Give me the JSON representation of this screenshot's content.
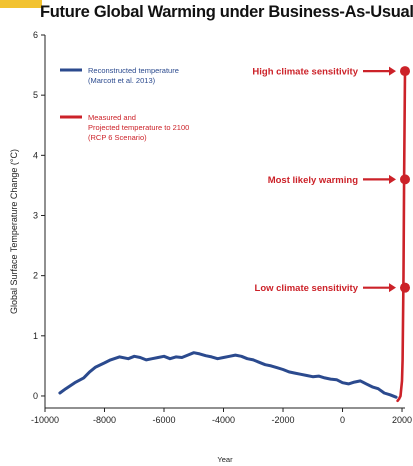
{
  "chart_data": {
    "type": "line",
    "title": "Future Global Warming under Business-As-Usual",
    "xlabel": "Year",
    "ylabel": "Global Surface Temperature Change (°C)",
    "xlim": [
      -10000,
      2100
    ],
    "ylim": [
      -0.2,
      6
    ],
    "x_ticks": [
      -10000,
      -8000,
      -6000,
      -4000,
      -2000,
      0,
      2000
    ],
    "y_ticks": [
      0,
      1,
      2,
      3,
      4,
      5,
      6
    ],
    "x_tick_labels": [
      "-10000",
      "-8000",
      "-6000",
      "-4000",
      "-2000",
      "0",
      "2000"
    ],
    "y_tick_labels": [
      "0",
      "1",
      "2",
      "3",
      "4",
      "5",
      "6"
    ],
    "legend_position": "top-left",
    "grid": false,
    "series": [
      {
        "name": "Reconstructed temperature (Marcott et al. 2013)",
        "legend_lines": [
          "Reconstructed temperature",
          "(Marcott et al. 2013)"
        ],
        "color": "#2b4a8e",
        "x": [
          -9500,
          -9300,
          -9000,
          -8700,
          -8500,
          -8300,
          -8000,
          -7800,
          -7500,
          -7200,
          -7000,
          -6800,
          -6600,
          -6400,
          -6200,
          -6000,
          -5800,
          -5600,
          -5400,
          -5200,
          -5000,
          -4800,
          -4600,
          -4400,
          -4200,
          -4000,
          -3800,
          -3600,
          -3400,
          -3200,
          -3000,
          -2800,
          -2600,
          -2400,
          -2200,
          -2000,
          -1800,
          -1600,
          -1400,
          -1200,
          -1000,
          -800,
          -600,
          -400,
          -200,
          0,
          200,
          400,
          600,
          800,
          1000,
          1200,
          1400,
          1600,
          1800
        ],
        "values": [
          0.05,
          0.12,
          0.22,
          0.3,
          0.4,
          0.48,
          0.55,
          0.6,
          0.65,
          0.62,
          0.66,
          0.64,
          0.6,
          0.62,
          0.64,
          0.66,
          0.62,
          0.65,
          0.64,
          0.68,
          0.72,
          0.7,
          0.67,
          0.65,
          0.62,
          0.64,
          0.66,
          0.68,
          0.66,
          0.62,
          0.6,
          0.56,
          0.52,
          0.5,
          0.47,
          0.44,
          0.4,
          0.38,
          0.36,
          0.34,
          0.32,
          0.33,
          0.3,
          0.28,
          0.27,
          0.22,
          0.2,
          0.23,
          0.25,
          0.2,
          0.15,
          0.12,
          0.05,
          0.02,
          -0.02
        ]
      },
      {
        "name": "Measured and Projected temperature to 2100 (RCP 6 Scenario)",
        "legend_lines": [
          "Measured and",
          "Projected temperature to 2100",
          "(RCP 6 Scenario)"
        ],
        "color": "#cc2229",
        "x": [
          1850,
          1900,
          1950,
          2000,
          2020,
          2050,
          2070,
          2100
        ],
        "values": [
          -0.08,
          -0.05,
          0.0,
          0.25,
          0.6,
          2.0,
          3.6,
          5.4
        ]
      }
    ],
    "markers": [
      {
        "label": "High climate sensitivity",
        "x": 2100,
        "y": 5.4
      },
      {
        "label": "Most likely warming",
        "x": 2100,
        "y": 3.6
      },
      {
        "label": "Low climate sensitivity",
        "x": 2100,
        "y": 1.8
      }
    ],
    "colors": {
      "annotation": "#cc2229",
      "accent": "#f2c230"
    }
  }
}
